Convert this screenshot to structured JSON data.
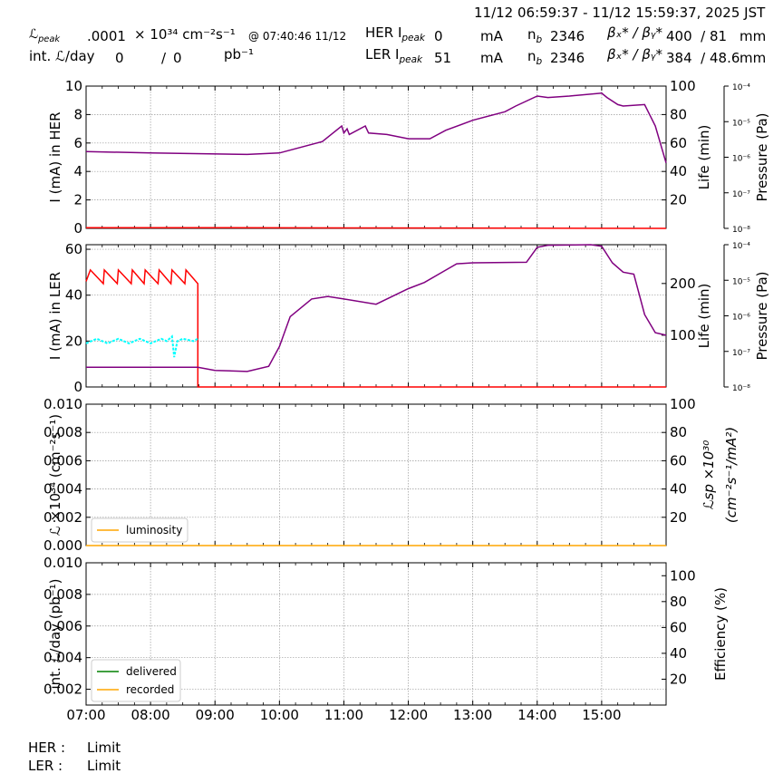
{
  "header": {
    "time_range": "11/12 06:59:37 - 11/12 15:59:37, 2025 JST",
    "lpeak_label": "ℒ",
    "lpeak_sub": "peak",
    "lpeak_value": ".0001",
    "lpeak_unit": "× 10³⁴ cm⁻²s⁻¹",
    "lpeak_time": "@ 07:40:46 11/12",
    "intl_label": "int. ℒ/day",
    "intl_delivered": "0",
    "intl_slash": "/",
    "intl_recorded": "0",
    "intl_unit": "pb⁻¹",
    "her_label": "HER I",
    "her_sub": "peak",
    "her_value": "0",
    "her_unit": "mA",
    "her_nb_label": "n",
    "her_nb_sub": "b",
    "her_nb": "2346",
    "her_beta_label": "βₓ* / βᵧ*",
    "her_beta": "400  / 81",
    "her_beta_unit": "mm",
    "ler_label": "LER I",
    "ler_sub": "peak",
    "ler_value": "51",
    "ler_unit": "mA",
    "ler_nb_label": "n",
    "ler_nb_sub": "b",
    "ler_nb": "2346",
    "ler_beta_label": "βₓ* / βᵧ*",
    "ler_beta": "384  / 48.6",
    "ler_beta_unit": "mm"
  },
  "footer": {
    "her_label": "HER :",
    "her_status": "Limit",
    "ler_label": "LER :",
    "ler_status": "Limit"
  },
  "colors": {
    "current": "#ff0000",
    "life": "#800080",
    "ler_pressure": "#00ffff",
    "luminosity": "#ffa500",
    "delivered": "#008000",
    "recorded": "#ffa500",
    "grid": "#999999"
  },
  "chart_data": [
    {
      "type": "line",
      "panel": "HER",
      "xlim": [
        "07:00",
        "16:00"
      ],
      "x_ticks": [
        "07:00",
        "08:00",
        "09:00",
        "10:00",
        "11:00",
        "12:00",
        "13:00",
        "14:00",
        "15:00"
      ],
      "ylabel": "I (mA) in HER",
      "ylim": [
        0,
        10
      ],
      "y_ticks": [
        "0",
        "2",
        "4",
        "6",
        "8",
        "10"
      ],
      "y2label": "Life (min)",
      "y2lim": [
        0,
        100
      ],
      "y2_ticks": [
        "20",
        "40",
        "60",
        "80",
        "100"
      ],
      "y3label": "Pressure (Pa)",
      "y3_ticks": [
        "10⁻⁸",
        "10⁻⁷",
        "10⁻⁶",
        "10⁻⁵",
        "10⁻⁴"
      ],
      "series": [
        {
          "axis": "y",
          "color": "current",
          "x": [
            "07:00",
            "08:40",
            "16:00"
          ],
          "y": [
            0.05,
            0.05,
            0.0
          ]
        },
        {
          "axis": "y2",
          "color": "life",
          "x": [
            "07:00",
            "08:00",
            "09:30",
            "10:00",
            "10:40",
            "10:58",
            "11:00",
            "11:03",
            "11:05",
            "11:20",
            "11:23",
            "11:40",
            "12:00",
            "12:20",
            "12:35",
            "13:00",
            "13:30",
            "13:40",
            "14:00",
            "14:10",
            "14:30",
            "15:00",
            "15:05",
            "15:15",
            "15:20",
            "15:40",
            "15:50",
            "16:00"
          ],
          "y": [
            54,
            53,
            52,
            53,
            61,
            72,
            67,
            70,
            66,
            72,
            67,
            66,
            63,
            63,
            69,
            76,
            82,
            86,
            93,
            92,
            93,
            95,
            92,
            87,
            86,
            87,
            72,
            46
          ]
        }
      ]
    },
    {
      "type": "line",
      "panel": "LER",
      "xlim": [
        "07:00",
        "16:00"
      ],
      "x_ticks": [
        "07:00",
        "08:00",
        "09:00",
        "10:00",
        "11:00",
        "12:00",
        "13:00",
        "14:00",
        "15:00"
      ],
      "ylabel": "I (mA) in LER",
      "ylim": [
        0,
        62
      ],
      "y_ticks": [
        "0",
        "20",
        "40",
        "60"
      ],
      "y2label": "Life (min)",
      "y2lim": [
        0,
        275
      ],
      "y2_ticks": [
        "100",
        "200"
      ],
      "y3label": "Pressure (Pa)",
      "y3_ticks": [
        "10⁻⁸",
        "10⁻⁷",
        "10⁻⁶",
        "10⁻⁵",
        "10⁻⁴"
      ],
      "series": [
        {
          "axis": "y",
          "color": "current",
          "x": [
            "07:00",
            "07:04",
            "07:16",
            "07:17",
            "07:29",
            "07:30",
            "07:42",
            "07:43",
            "07:54",
            "07:55",
            "08:07",
            "08:08",
            "08:19",
            "08:20",
            "08:32",
            "08:33",
            "08:44",
            "08:44",
            "16:00"
          ],
          "y": [
            46,
            51,
            45,
            51,
            45,
            51,
            45,
            51,
            45,
            51,
            45,
            51,
            45,
            51,
            45,
            51,
            45,
            0,
            0
          ]
        },
        {
          "axis": "y",
          "color": "ler_pressure",
          "x": [
            "07:00",
            "07:10",
            "07:20",
            "07:30",
            "07:40",
            "07:50",
            "08:00",
            "08:10",
            "08:15",
            "08:20",
            "08:22",
            "08:25",
            "08:30",
            "08:40",
            "08:44"
          ],
          "y": [
            19,
            21,
            19,
            21,
            19,
            21,
            19,
            21,
            20,
            22,
            13,
            20,
            21,
            20,
            21
          ]
        },
        {
          "axis": "y2",
          "color": "life",
          "x": [
            "07:00",
            "08:00",
            "08:44",
            "09:00",
            "09:30",
            "09:50",
            "10:00",
            "10:10",
            "10:30",
            "10:45",
            "11:00",
            "11:30",
            "12:00",
            "12:15",
            "12:30",
            "12:45",
            "13:00",
            "13:50",
            "14:00",
            "14:10",
            "14:50",
            "15:00",
            "15:10",
            "15:20",
            "15:30",
            "15:40",
            "15:50",
            "16:00"
          ],
          "y": [
            38,
            38,
            38,
            32,
            30,
            40,
            78,
            136,
            170,
            175,
            170,
            160,
            190,
            202,
            220,
            238,
            240,
            241,
            270,
            274,
            275,
            272,
            240,
            222,
            218,
            140,
            105,
            100
          ]
        }
      ]
    },
    {
      "type": "line",
      "panel": "Luminosity",
      "xlim": [
        "07:00",
        "16:00"
      ],
      "x_ticks": [
        "07:00",
        "08:00",
        "09:00",
        "10:00",
        "11:00",
        "12:00",
        "13:00",
        "14:00",
        "15:00"
      ],
      "ylabel": "ℒ ×10³⁴ (cm⁻²s⁻¹)",
      "ylim": [
        0,
        0.01
      ],
      "y_ticks": [
        "0.000",
        "0.002",
        "0.004",
        "0.006",
        "0.008",
        "0.010"
      ],
      "y2label": "ℒsp ×10³⁰ (cm⁻²s⁻¹/mA²)",
      "y2lim": [
        0,
        100
      ],
      "y2_ticks": [
        "20",
        "40",
        "60",
        "80",
        "100"
      ],
      "legend": "bottom-left",
      "series": [
        {
          "name": "luminosity",
          "axis": "y",
          "color": "luminosity",
          "x": [
            "07:00",
            "16:00"
          ],
          "y": [
            0.0,
            0.0
          ]
        }
      ]
    },
    {
      "type": "line",
      "panel": "Integrated",
      "xlim": [
        "07:00",
        "16:00"
      ],
      "x_ticks": [
        "07:00",
        "08:00",
        "09:00",
        "10:00",
        "11:00",
        "12:00",
        "13:00",
        "14:00",
        "15:00"
      ],
      "ylabel": "int. ℒ/day (pb⁻¹)",
      "ylim": [
        0.001,
        0.01
      ],
      "y_ticks": [
        "0.002",
        "0.004",
        "0.006",
        "0.008",
        "0.010"
      ],
      "y2label": "Efficiency (%)",
      "y2lim": [
        0,
        110
      ],
      "y2_ticks": [
        "20",
        "40",
        "60",
        "80",
        "100"
      ],
      "legend": "bottom-left",
      "series": [
        {
          "name": "delivered",
          "axis": "y",
          "color": "delivered",
          "x": [],
          "y": []
        },
        {
          "name": "recorded",
          "axis": "y",
          "color": "recorded",
          "x": [],
          "y": []
        }
      ]
    }
  ]
}
